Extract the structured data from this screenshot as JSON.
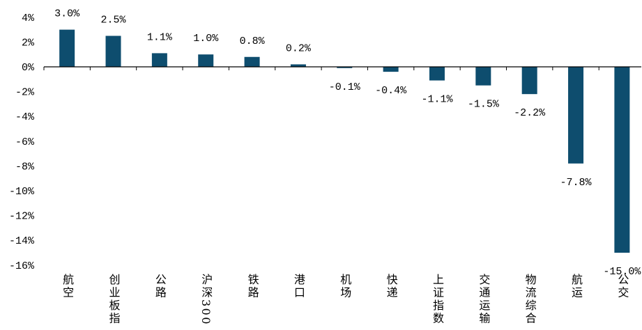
{
  "chart_data": {
    "type": "bar",
    "categories": [
      "航空",
      "创业板指",
      "公路",
      "沪深300",
      "铁路",
      "港口",
      "机场",
      "快递",
      "上证指数",
      "交通运输",
      "物流综合",
      "航运",
      "公交"
    ],
    "values": [
      3.0,
      2.5,
      1.1,
      1.0,
      0.8,
      0.2,
      -0.1,
      -0.4,
      -1.1,
      -1.5,
      -2.2,
      -7.8,
      -15.0
    ],
    "value_labels": [
      "3.0%",
      "2.5%",
      "1.1%",
      "1.0%",
      "0.8%",
      "0.2%",
      "-0.1%",
      "-0.4%",
      "-1.1%",
      "-1.5%",
      "-2.2%",
      "-7.8%",
      "-15.0%"
    ],
    "ylim": [
      -16,
      4
    ],
    "yticks": [
      4,
      2,
      0,
      -2,
      -4,
      -6,
      -8,
      -10,
      -12,
      -14,
      -16
    ],
    "ytick_labels": [
      "4%",
      "2%",
      "0%",
      "-2%",
      "-4%",
      "-6%",
      "-8%",
      "-10%",
      "-12%",
      "-14%",
      "-16%"
    ],
    "grid": false,
    "bar_color": "#0e4d6e",
    "axis_color": "#000000"
  }
}
